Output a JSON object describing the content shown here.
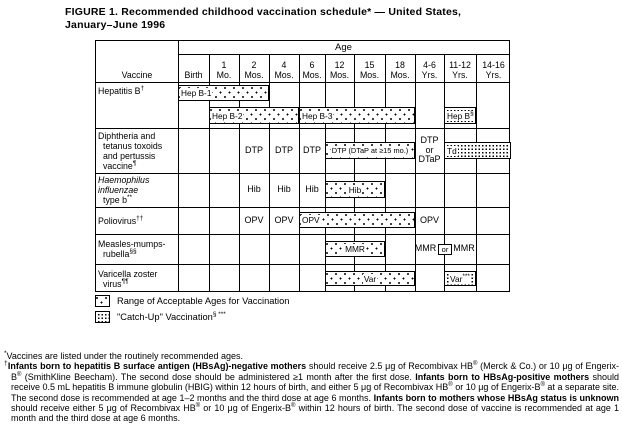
{
  "title": {
    "line1": "FIGURE 1. Recommended childhood vaccination schedule* — United States,",
    "line2": "January–June 1996"
  },
  "chart_data": {
    "type": "table",
    "title": "Recommended childhood vaccination schedule — United States, January–June 1996",
    "age_axis_label": "Age",
    "corner_label": "Vaccine",
    "columns": [
      {
        "lines": [
          "Birth"
        ]
      },
      {
        "lines": [
          "1",
          "Mo."
        ]
      },
      {
        "lines": [
          "2",
          "Mos."
        ]
      },
      {
        "lines": [
          "4",
          "Mos."
        ]
      },
      {
        "lines": [
          "6",
          "Mos."
        ]
      },
      {
        "lines": [
          "12",
          "Mos."
        ]
      },
      {
        "lines": [
          "15",
          "Mos."
        ]
      },
      {
        "lines": [
          "18",
          "Mos."
        ]
      },
      {
        "lines": [
          "4-6",
          "Yrs."
        ]
      },
      {
        "lines": [
          "11-12",
          "Yrs."
        ]
      },
      {
        "lines": [
          "14-16",
          "Yrs."
        ]
      }
    ],
    "rows": [
      {
        "label_lines": [
          {
            "text": "Hepatitis B",
            "sup": "†"
          }
        ],
        "bars": [
          {
            "label": "Hep B-1",
            "from": 0,
            "to": 2,
            "style": "range",
            "line": 1,
            "align": "left"
          },
          {
            "label": "Hep B-2",
            "from": 1,
            "to": 3,
            "style": "range",
            "line": 2,
            "align": "left"
          },
          {
            "label": "Hep B-3",
            "from": 4,
            "to": 7,
            "style": "range",
            "line": 2,
            "align": "left"
          },
          {
            "label": "Hep B",
            "sup": "§",
            "from": 9,
            "to": 9,
            "style": "catchup",
            "line": 2,
            "align": "left"
          }
        ],
        "cells": []
      },
      {
        "label_lines": [
          {
            "text": "Diphtheria and"
          },
          {
            "text": "tetanus toxoids",
            "indent": true
          },
          {
            "text": "and pertussis",
            "indent": true
          },
          {
            "text": "vaccine",
            "sup": "¶",
            "indent": true
          }
        ],
        "bars": [
          {
            "label": "DTP (DTaP at ≥15 mo.)",
            "from": 5,
            "to": 7,
            "style": "range",
            "align": "center"
          },
          {
            "label": "Td",
            "from": 9,
            "to": 10,
            "style": "catchup",
            "align": "left"
          }
        ],
        "cells": [
          {
            "text": "DTP",
            "col": 2
          },
          {
            "text": "DTP",
            "col": 3
          },
          {
            "text": "DTP",
            "col": 4
          },
          {
            "lines": [
              "DTP",
              "or",
              "DTaP"
            ],
            "col": 8
          }
        ]
      },
      {
        "label_lines": [
          {
            "text": "Haemophilus",
            "italic": true
          },
          {
            "text": "influenzae",
            "italic": true
          },
          {
            "text": "type b",
            "sup": "**",
            "indent": true
          }
        ],
        "bars": [
          {
            "label": "Hib",
            "from": 5,
            "to": 6,
            "style": "range",
            "align": "center"
          }
        ],
        "cells": [
          {
            "text": "Hib",
            "col": 2
          },
          {
            "text": "Hib",
            "col": 3
          },
          {
            "text": "Hib",
            "col": 4
          }
        ]
      },
      {
        "label_lines": [
          {
            "text": "Poliovirus",
            "sup": "††"
          }
        ],
        "bars": [
          {
            "label": "OPV",
            "from": 4,
            "to": 7,
            "style": "range",
            "align": "left"
          }
        ],
        "cells": [
          {
            "text": "OPV",
            "col": 2
          },
          {
            "text": "OPV",
            "col": 3
          },
          {
            "text": "OPV",
            "col": 8
          }
        ]
      },
      {
        "label_lines": [
          {
            "text": "Measles-mumps-"
          },
          {
            "text": "rubella",
            "sup": "§§",
            "indent": true
          }
        ],
        "bars": [
          {
            "label": "MMR",
            "from": 5,
            "to": 6,
            "style": "range",
            "align": "center"
          }
        ],
        "cells": [
          {
            "text": "MMR",
            "col": 8,
            "inset_right": true
          },
          {
            "text": "or",
            "boundary": 9,
            "boxed": true
          },
          {
            "text": "MMR",
            "col": 9,
            "inset_left": true
          }
        ]
      },
      {
        "label_lines": [
          {
            "text": "Varicella zoster"
          },
          {
            "text": "virus",
            "sup": "¶¶",
            "indent": true
          }
        ],
        "bars": [
          {
            "label": "Var",
            "from": 5,
            "to": 7,
            "style": "range",
            "align": "center"
          },
          {
            "label": "Var",
            "sup": "***",
            "from": 9,
            "to": 9,
            "style": "catchup",
            "align": "center"
          }
        ],
        "cells": []
      }
    ]
  },
  "legend": {
    "items": [
      {
        "style": "range",
        "label": "Range of Acceptable Ages for Vaccination"
      },
      {
        "style": "catchup",
        "label": "\"Catch-Up\" Vaccination",
        "sup": "§ ***"
      }
    ]
  },
  "footnotes": [
    {
      "marker": "*",
      "segments": [
        {
          "text": "Vaccines are listed under the routinely recommended ages."
        }
      ]
    },
    {
      "marker": "†",
      "segments": [
        {
          "text": "Infants born to hepatitis B surface antigen (HBsAg)-negative mothers",
          "bold": true
        },
        {
          "text": " should receive 2.5 μg of Recombivax HB"
        },
        {
          "text": "®",
          "sup": true
        },
        {
          "text": " (Merck & Co.) or 10 μg of Engerix-B"
        },
        {
          "text": "®",
          "sup": true
        },
        {
          "text": " (SmithKline Beecham). The second dose should be administered ≥1 month after the first dose. "
        },
        {
          "text": "Infants born to HBsAg-positive mothers",
          "bold": true
        },
        {
          "text": " should receive 0.5 mL hepatitis B immune globulin (HBIG) within 12 hours of birth, and either 5 μg of Recombivax HB"
        },
        {
          "text": "®",
          "sup": true
        },
        {
          "text": " or 10 μg of Engerix-B"
        },
        {
          "text": "®",
          "sup": true
        },
        {
          "text": " at a separate site. The second dose is recommended at age 1–2 months and the third dose at age 6 months. "
        },
        {
          "text": "Infants born to mothers whose HBsAg status is unknown",
          "bold": true
        },
        {
          "text": " should receive either 5 μg of Recombivax HB"
        },
        {
          "text": "®",
          "sup": true
        },
        {
          "text": " or 10 μg of Engerix-B"
        },
        {
          "text": "®",
          "sup": true
        },
        {
          "text": " within 12 hours of birth. The second dose of vaccine is recommended at age 1 month and the third dose at age 6 months."
        }
      ]
    }
  ]
}
